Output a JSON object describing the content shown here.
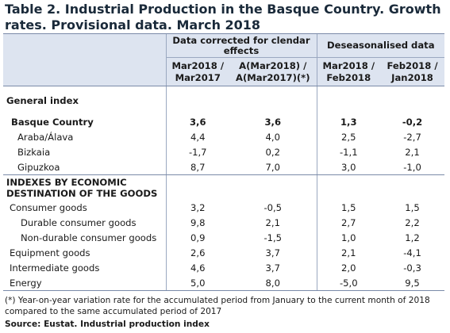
{
  "title": "Table 2. Industrial Production in the Basque Country. Growth rates. Provisional data. March 2018",
  "headers": {
    "group1": "Data corrected for clendar effects",
    "group2": "Deseasonalised data",
    "col1": "Mar2018 / Mar2017",
    "col2": "A(Mar2018) / A(Mar2017)(*)",
    "col3": "Mar2018 / Feb2018",
    "col4": "Feb2018 / Jan2018"
  },
  "sections": {
    "general": "General index",
    "destination": "INDEXES BY ECONOMIC DESTINATION OF THE GOODS"
  },
  "rows": [
    {
      "label": "Basque Country",
      "v": [
        "3,6",
        "3,6",
        "1,3",
        "-0,2"
      ]
    },
    {
      "label": "Araba/Álava",
      "v": [
        "4,4",
        "4,0",
        "2,5",
        "-2,7"
      ]
    },
    {
      "label": "Bizkaia",
      "v": [
        "-1,7",
        "0,2",
        "-1,1",
        "2,1"
      ]
    },
    {
      "label": "Gipuzkoa",
      "v": [
        "8,7",
        "7,0",
        "3,0",
        "-1,0"
      ]
    },
    {
      "label": "Consumer goods",
      "v": [
        "3,2",
        "-0,5",
        "1,5",
        "1,5"
      ]
    },
    {
      "label": "Durable consumer goods",
      "v": [
        "9,8",
        "2,1",
        "2,7",
        "2,2"
      ]
    },
    {
      "label": "Non-durable consumer goods",
      "v": [
        "0,9",
        "-1,5",
        "1,0",
        "1,2"
      ]
    },
    {
      "label": "Equipment goods",
      "v": [
        "2,6",
        "3,7",
        "2,1",
        "-4,1"
      ]
    },
    {
      "label": "Intermediate goods",
      "v": [
        "4,6",
        "3,7",
        "2,0",
        "-0,3"
      ]
    },
    {
      "label": "Energy",
      "v": [
        "5,0",
        "8,0",
        "-5,0",
        "9,5"
      ]
    }
  ],
  "footnote": "(*) Year-on-year variation rate for the accumulated period from January to the current month of 2018 compared to the same accumulated period of 2017",
  "source": "Source: Eustat. Industrial production index"
}
